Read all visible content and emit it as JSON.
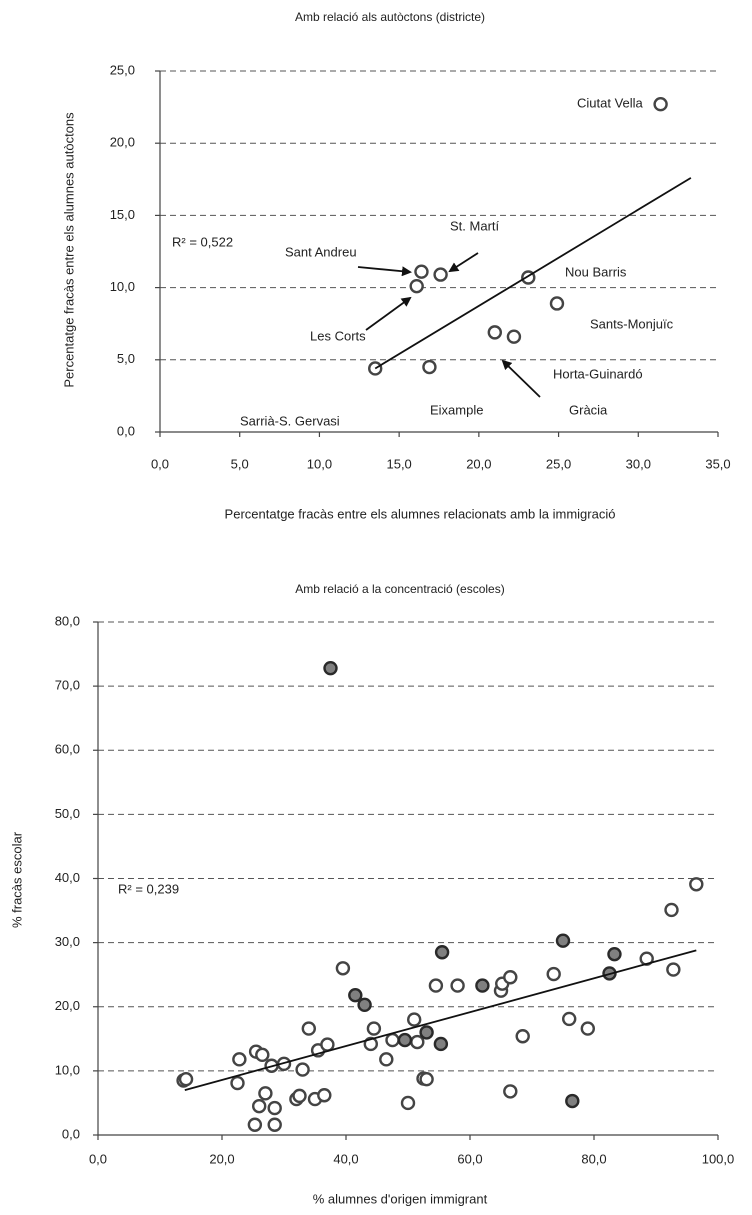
{
  "chart_data": [
    {
      "type": "scatter",
      "title": "Amb relació als autòctons (districte)",
      "xlabel": "Percentatge fracàs entre els alumnes relacionats amb la immigració",
      "ylabel": "Percentatge fracàs entre els alumnes autòctons",
      "xlim": [
        0,
        35
      ],
      "ylim": [
        0,
        25
      ],
      "xticks": [
        {
          "value": 0,
          "label": "0,0"
        },
        {
          "value": 5,
          "label": "5,0"
        },
        {
          "value": 10,
          "label": "10,0"
        },
        {
          "value": 15,
          "label": "15,0"
        },
        {
          "value": 20,
          "label": "20,0"
        },
        {
          "value": 25,
          "label": "25,0"
        },
        {
          "value": 30,
          "label": "30,0"
        },
        {
          "value": 35,
          "label": "35,0"
        }
      ],
      "yticks": [
        {
          "value": 0,
          "label": "0,0"
        },
        {
          "value": 5,
          "label": "5,0"
        },
        {
          "value": 10,
          "label": "10,0"
        },
        {
          "value": 15,
          "label": "15,0"
        },
        {
          "value": 20,
          "label": "20,0"
        },
        {
          "value": 25,
          "label": "25,0"
        }
      ],
      "grid": true,
      "series": [
        {
          "color": "#ffffff",
          "x": [
            31.4,
            16.4,
            17.6,
            16.1,
            23.1,
            24.9,
            21.0,
            22.2,
            13.5,
            16.9
          ],
          "values": [
            22.7,
            11.1,
            10.9,
            10.1,
            10.7,
            8.9,
            6.9,
            6.6,
            4.4,
            4.5
          ]
        }
      ],
      "annotations": [
        "Ciutat Vella",
        "Sant  Andreu",
        "St. Martí",
        "Nou Barris",
        "Les Corts",
        "Sants-Monjuïc",
        "Horta-Guinardó",
        "Gràcia",
        "Eixample",
        "Sarrià-S. Gervasi"
      ],
      "r2_label": "R² = 0,522",
      "trendline": {
        "x": [
          13.5,
          33.3
        ],
        "y": [
          4.4,
          17.6
        ]
      }
    },
    {
      "type": "scatter",
      "title": "Amb relació a la concentració (escoles)",
      "xlabel": "% alumnes d'origen immigrant",
      "ylabel": "% fracàs escolar",
      "xlim": [
        0,
        100
      ],
      "ylim": [
        0,
        80
      ],
      "xticks": [
        {
          "value": 0,
          "label": "0,0"
        },
        {
          "value": 20,
          "label": "20,0"
        },
        {
          "value": 40,
          "label": "40,0"
        },
        {
          "value": 60,
          "label": "60,0"
        },
        {
          "value": 80,
          "label": "80,0"
        },
        {
          "value": 100,
          "label": "100,0"
        }
      ],
      "yticks": [
        {
          "value": 0,
          "label": "0,0"
        },
        {
          "value": 10,
          "label": "10,0"
        },
        {
          "value": 20,
          "label": "20,0"
        },
        {
          "value": 30,
          "label": "30,0"
        },
        {
          "value": 40,
          "label": "40,0"
        },
        {
          "value": 50,
          "label": "50,0"
        },
        {
          "value": 60,
          "label": "60,0"
        },
        {
          "value": 70,
          "label": "70,0"
        },
        {
          "value": 80,
          "label": "80,0"
        }
      ],
      "grid": true,
      "series": [
        {
          "color": "#ffffff",
          "x": [
            13.8,
            14.2,
            22.5,
            22.8,
            25.3,
            25.5,
            26,
            26.5,
            27,
            28,
            28.5,
            28.5,
            30,
            32,
            32.5,
            33,
            34,
            35,
            35.5,
            36.5,
            37,
            39.5,
            44,
            44.5,
            46.5,
            47.5,
            50,
            51,
            51.5,
            52.5,
            53,
            54.5,
            58,
            65,
            65.2,
            66.5,
            66.5,
            68.5,
            73.5,
            76,
            79,
            88.5,
            92.5,
            92.8,
            96.5
          ],
          "values": [
            8.5,
            8.7,
            8.1,
            11.8,
            1.6,
            13,
            4.5,
            12.5,
            6.5,
            10.8,
            1.6,
            4.2,
            11.1,
            5.6,
            6.1,
            10.2,
            16.6,
            5.6,
            13.2,
            6.2,
            14.1,
            26,
            14.2,
            16.6,
            11.8,
            14.8,
            5,
            18,
            14.5,
            8.8,
            8.7,
            23.3,
            23.3,
            22.5,
            23.6,
            24.6,
            6.8,
            15.4,
            25.1,
            18.1,
            16.6,
            27.5,
            35.1,
            25.8,
            39.1
          ]
        },
        {
          "color": "#808080",
          "x": [
            37.5,
            41.5,
            43,
            49.5,
            53,
            55.3,
            55.5,
            62,
            75,
            76.5,
            82.5,
            83.3
          ],
          "values": [
            72.8,
            21.8,
            20.3,
            14.8,
            16,
            14.2,
            28.5,
            23.3,
            30.3,
            5.3,
            25.2,
            28.2
          ]
        }
      ],
      "r2_label": "R² = 0,239",
      "trendline": {
        "x": [
          14,
          96.5
        ],
        "y": [
          7,
          28.8
        ]
      }
    }
  ]
}
